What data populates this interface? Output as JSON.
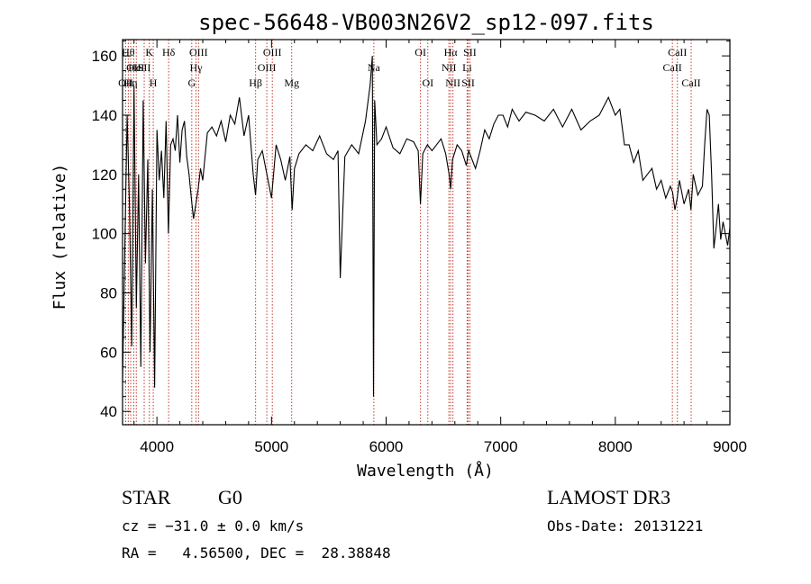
{
  "chart_data": {
    "type": "line",
    "title": "spec-56648-VB003N26V2_sp12-097.fits",
    "xlabel": "Wavelength (Å)",
    "ylabel": "Flux (relative)",
    "xlim": [
      3700,
      9000
    ],
    "ylim": [
      35.5,
      165.5
    ],
    "x_ticks": [
      4000,
      5000,
      6000,
      7000,
      8000,
      9000
    ],
    "y_ticks": [
      40,
      60,
      80,
      100,
      120,
      140,
      160
    ],
    "line_color": "#000000",
    "marker_color": "#c0392b",
    "series": [
      {
        "name": "spectrum",
        "x": [
          3700,
          3720,
          3740,
          3760,
          3780,
          3800,
          3820,
          3840,
          3860,
          3880,
          3900,
          3920,
          3940,
          3960,
          3980,
          4000,
          4020,
          4040,
          4060,
          4080,
          4100,
          4120,
          4140,
          4160,
          4180,
          4200,
          4220,
          4240,
          4260,
          4280,
          4300,
          4320,
          4340,
          4360,
          4380,
          4400,
          4440,
          4480,
          4520,
          4560,
          4600,
          4640,
          4680,
          4720,
          4760,
          4800,
          4840,
          4861,
          4880,
          4920,
          4960,
          5000,
          5040,
          5080,
          5120,
          5160,
          5180,
          5200,
          5240,
          5300,
          5360,
          5420,
          5480,
          5540,
          5580,
          5600,
          5640,
          5700,
          5760,
          5820,
          5860,
          5880,
          5890,
          5900,
          5920,
          5960,
          6000,
          6060,
          6120,
          6180,
          6240,
          6280,
          6300,
          6320,
          6360,
          6400,
          6440,
          6480,
          6520,
          6550,
          6563,
          6580,
          6620,
          6660,
          6700,
          6720,
          6740,
          6780,
          6820,
          6860,
          6900,
          6940,
          6980,
          7020,
          7060,
          7100,
          7160,
          7220,
          7300,
          7380,
          7460,
          7540,
          7620,
          7700,
          7780,
          7860,
          7940,
          8000,
          8040,
          8080,
          8120,
          8160,
          8200,
          8240,
          8280,
          8320,
          8360,
          8400,
          8440,
          8480,
          8500,
          8520,
          8540,
          8560,
          8600,
          8640,
          8660,
          8680,
          8720,
          8760,
          8780,
          8800,
          8820,
          8840,
          8860,
          8880,
          8900,
          8920,
          8940,
          8960,
          8980,
          9000
        ],
        "y": [
          50,
          95,
          140,
          110,
          62,
          150,
          75,
          120,
          55,
          145,
          90,
          125,
          60,
          115,
          48,
          135,
          118,
          128,
          112,
          138,
          100,
          130,
          132,
          128,
          140,
          124,
          135,
          138,
          126,
          120,
          112,
          105,
          110,
          115,
          122,
          118,
          134,
          136,
          133,
          138,
          131,
          140,
          137,
          146,
          133,
          140,
          120,
          113,
          125,
          128,
          120,
          112,
          130,
          125,
          118,
          126,
          108,
          122,
          127,
          130,
          128,
          133,
          127,
          125,
          128,
          85,
          126,
          130,
          127,
          138,
          150,
          160,
          45,
          145,
          130,
          132,
          136,
          129,
          127,
          132,
          131,
          128,
          110,
          127,
          130,
          128,
          130,
          132,
          127,
          120,
          115,
          125,
          130,
          128,
          123,
          128,
          126,
          122,
          128,
          135,
          132,
          137,
          140,
          140,
          136,
          142,
          138,
          141,
          140,
          138,
          142,
          136,
          142,
          135,
          138,
          140,
          146,
          140,
          142,
          130,
          130,
          124,
          128,
          118,
          120,
          122,
          115,
          118,
          112,
          116,
          114,
          108,
          112,
          118,
          110,
          115,
          108,
          120,
          113,
          116,
          130,
          142,
          140,
          120,
          95,
          102,
          110,
          98,
          104,
          100,
          96,
          102
        ]
      }
    ],
    "line_markers": [
      {
        "x": 3727,
        "label": "OII",
        "row": 3
      },
      {
        "x": 3750,
        "label": "Hθ",
        "row": 1
      },
      {
        "x": 3771,
        "label": "Hη",
        "row": 3
      },
      {
        "x": 3798,
        "label": "OII",
        "row": 2
      },
      {
        "x": 3820,
        "label": "HeI",
        "row": 2
      },
      {
        "x": 3889,
        "label": "SII",
        "row": 2
      },
      {
        "x": 3934,
        "label": "K",
        "row": 1
      },
      {
        "x": 3968,
        "label": "H",
        "row": 3
      },
      {
        "x": 4102,
        "label": "Hδ",
        "row": 1
      },
      {
        "x": 4304,
        "label": "G",
        "row": 3
      },
      {
        "x": 4341,
        "label": "Hγ",
        "row": 2
      },
      {
        "x": 4363,
        "label": "OIII",
        "row": 1
      },
      {
        "x": 4861,
        "label": "Hβ",
        "row": 3
      },
      {
        "x": 4959,
        "label": "OIII",
        "row": 2
      },
      {
        "x": 5007,
        "label": "OIII",
        "row": 1
      },
      {
        "x": 5176,
        "label": "Mg",
        "row": 3
      },
      {
        "x": 5893,
        "label": "Na",
        "row": 2
      },
      {
        "x": 6300,
        "label": "OI",
        "row": 1
      },
      {
        "x": 6364,
        "label": "OI",
        "row": 3
      },
      {
        "x": 6548,
        "label": "NII",
        "row": 2
      },
      {
        "x": 6563,
        "label": "Hα",
        "row": 1
      },
      {
        "x": 6583,
        "label": "NII",
        "row": 3
      },
      {
        "x": 6707,
        "label": "Li",
        "row": 2
      },
      {
        "x": 6716,
        "label": "SII",
        "row": 3
      },
      {
        "x": 6731,
        "label": "SII",
        "row": 1
      },
      {
        "x": 8498,
        "label": "CaII",
        "row": 2
      },
      {
        "x": 8542,
        "label": "CaII",
        "row": 1
      },
      {
        "x": 8662,
        "label": "CaII",
        "row": 3
      }
    ]
  },
  "info": {
    "object_class": "STAR",
    "subclass": "G0",
    "survey": "LAMOST DR3",
    "redshift_line": "cz = −31.0 ± 0.0 km/s",
    "obs_date": "Obs-Date: 20131221",
    "coords": "RA =   4.56500, DEC =  28.38848"
  }
}
